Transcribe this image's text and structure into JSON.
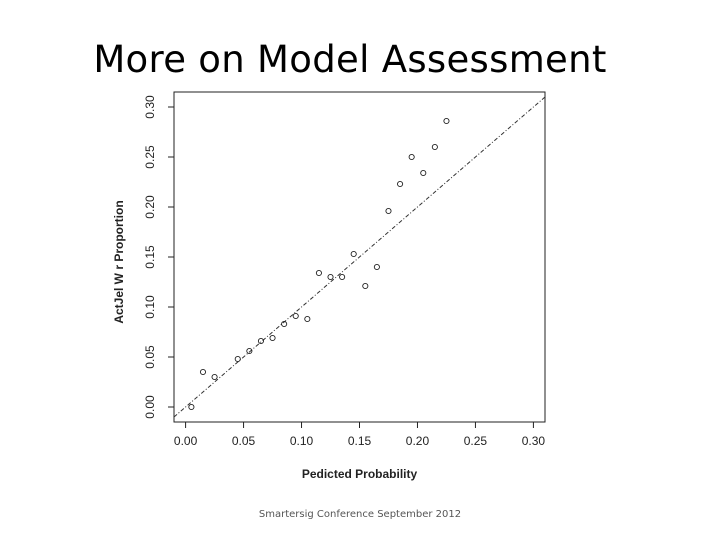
{
  "slide": {
    "title": "More on Model Assessment",
    "footer": "Smartersig Conference September 2012"
  },
  "chart_data": {
    "type": "scatter",
    "title": "",
    "xlabel": "Pedicted Probability",
    "ylabel": "ActJel W r Proportion",
    "xlim": [
      -0.01,
      0.31
    ],
    "ylim": [
      -0.015,
      0.315
    ],
    "x_ticks": [
      0.0,
      0.05,
      0.1,
      0.15,
      0.2,
      0.25,
      0.3
    ],
    "x_tick_labels": [
      "0.00",
      "0.05",
      "0.10",
      "0.15",
      "0.20",
      "0.25",
      "0.30"
    ],
    "y_ticks": [
      0.0,
      0.05,
      0.1,
      0.15,
      0.2,
      0.25,
      0.3
    ],
    "y_tick_labels": [
      "0.00",
      "0.05",
      "0.10",
      "0.15",
      "0.20",
      "0.25",
      "0.30"
    ],
    "grid": false,
    "reference_line": {
      "style": "dashed",
      "points": [
        [
          -0.01,
          -0.01
        ],
        [
          0.31,
          0.31
        ]
      ]
    },
    "series": [
      {
        "marker": "open-circle",
        "x": [
          0.005,
          0.015,
          0.025,
          0.045,
          0.055,
          0.065,
          0.075,
          0.085,
          0.095,
          0.105,
          0.115,
          0.125,
          0.135,
          0.145,
          0.155,
          0.165,
          0.175,
          0.185,
          0.195,
          0.205,
          0.215,
          0.225
        ],
        "y": [
          0.0,
          0.035,
          0.03,
          0.048,
          0.056,
          0.066,
          0.069,
          0.083,
          0.091,
          0.088,
          0.134,
          0.13,
          0.13,
          0.153,
          0.121,
          0.14,
          0.196,
          0.223,
          0.25,
          0.234,
          0.26,
          0.286
        ]
      }
    ]
  }
}
